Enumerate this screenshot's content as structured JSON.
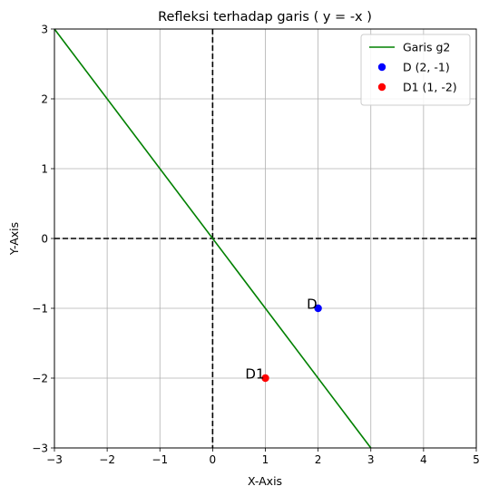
{
  "chart_data": {
    "type": "scatter",
    "title": "Refleksi terhadap garis ( y = -x )",
    "xlabel": "X-Axis",
    "ylabel": "Y-Axis",
    "xlim": [
      -3,
      5
    ],
    "ylim": [
      -3,
      3
    ],
    "xticks": [
      -3,
      -2,
      -1,
      0,
      1,
      2,
      3,
      4,
      5
    ],
    "yticks": [
      -3,
      -2,
      -1,
      0,
      1,
      2,
      3
    ],
    "xtick_labels": [
      "−3",
      "−2",
      "−1",
      "0",
      "1",
      "2",
      "3",
      "4",
      "5"
    ],
    "ytick_labels": [
      "−3",
      "−2",
      "−1",
      "0",
      "1",
      "2",
      "3"
    ],
    "grid": true,
    "legend_position": "top-right",
    "axes_lines": {
      "x": 0,
      "y": 0,
      "style": "dashed",
      "color": "#000000"
    },
    "series": [
      {
        "name": "Garis g2",
        "kind": "line",
        "color": "#008000",
        "x": [
          -3,
          3
        ],
        "y": [
          3,
          -3
        ]
      },
      {
        "name": "D (2, -1)",
        "kind": "point",
        "color": "#0000ff",
        "x": [
          2
        ],
        "y": [
          -1
        ]
      },
      {
        "name": "D1 (1, -2)",
        "kind": "point",
        "color": "#ff0000",
        "x": [
          1
        ],
        "y": [
          -2
        ]
      }
    ],
    "annotations": [
      {
        "text": "D",
        "x": 2,
        "y": -1
      },
      {
        "text": "D1",
        "x": 1,
        "y": -2
      }
    ]
  }
}
